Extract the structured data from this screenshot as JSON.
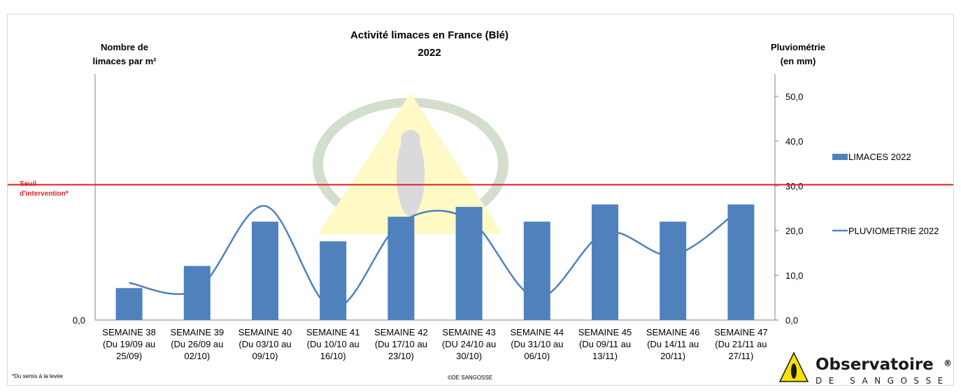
{
  "chart_data": {
    "type": "bar",
    "title": "Activité limaces en France (Blé)",
    "subtitle": "2022",
    "ylabel_left": [
      "Nombre de",
      "limaces par m²"
    ],
    "ylabel_right": [
      "Pluviométrie",
      "(en mm)"
    ],
    "left_axis_ticks": [
      "0,0"
    ],
    "right_axis_ticks": [
      "0,0",
      "10,0",
      "20,0",
      "30,0",
      "40,0",
      "50,0"
    ],
    "ylim_right": [
      0,
      55
    ],
    "categories": [
      [
        "SEMAINE 38",
        "(Du 19/09 au",
        "25/09)"
      ],
      [
        "SEMAINE 39",
        "(Du 26/09 au",
        "02/10)"
      ],
      [
        "SEMAINE 40",
        "(Du 03/10 au",
        "09/10)"
      ],
      [
        "SEMAINE 41",
        "(Du 10/10 au",
        "16/10)"
      ],
      [
        "SEMAINE 42",
        "(Du 17/10 au",
        "23/10)"
      ],
      [
        "SEMAINE 43",
        "(DU 24/10 au",
        "30/10)"
      ],
      [
        "SEMAINE 44",
        "(Du 31/10 au",
        "06/10)"
      ],
      [
        "SEMAINE 45",
        "(Du 09/11 au",
        "13/11)"
      ],
      [
        "SEMAINE 46",
        "(Du 14/11 au",
        "20/11)"
      ],
      [
        "SEMAINE 47",
        "(Du 21/11 au",
        "27/11)"
      ]
    ],
    "series": [
      {
        "name": "LIMACES 2022",
        "type": "bar",
        "color": "#4f81bd",
        "values": [
          0.13,
          0.22,
          0.4,
          0.32,
          0.42,
          0.46,
          0.4,
          0.47,
          0.4,
          0.47
        ]
      },
      {
        "name": "PLUVIOMETRIE 2022",
        "type": "line",
        "color": "#4f81bd",
        "values": [
          8.3,
          6.8,
          25.5,
          2.6,
          21.8,
          22.5,
          5.0,
          19.5,
          14.5,
          25.0
        ]
      }
    ],
    "threshold": {
      "label": [
        "Seuil",
        "d'intervention*"
      ],
      "value": 0.55,
      "color": "#e02020"
    },
    "legend_position": "right",
    "grid": false
  },
  "footnote": "*Du semis à la levée",
  "copyright": "©DE SANGOSSE",
  "logo": {
    "name": "Observatoire",
    "reg": "®",
    "sub": "DE SANGOSSE"
  },
  "colors": {
    "bar": "#4f81bd",
    "line": "#4f81bd",
    "threshold": "#e02020"
  }
}
